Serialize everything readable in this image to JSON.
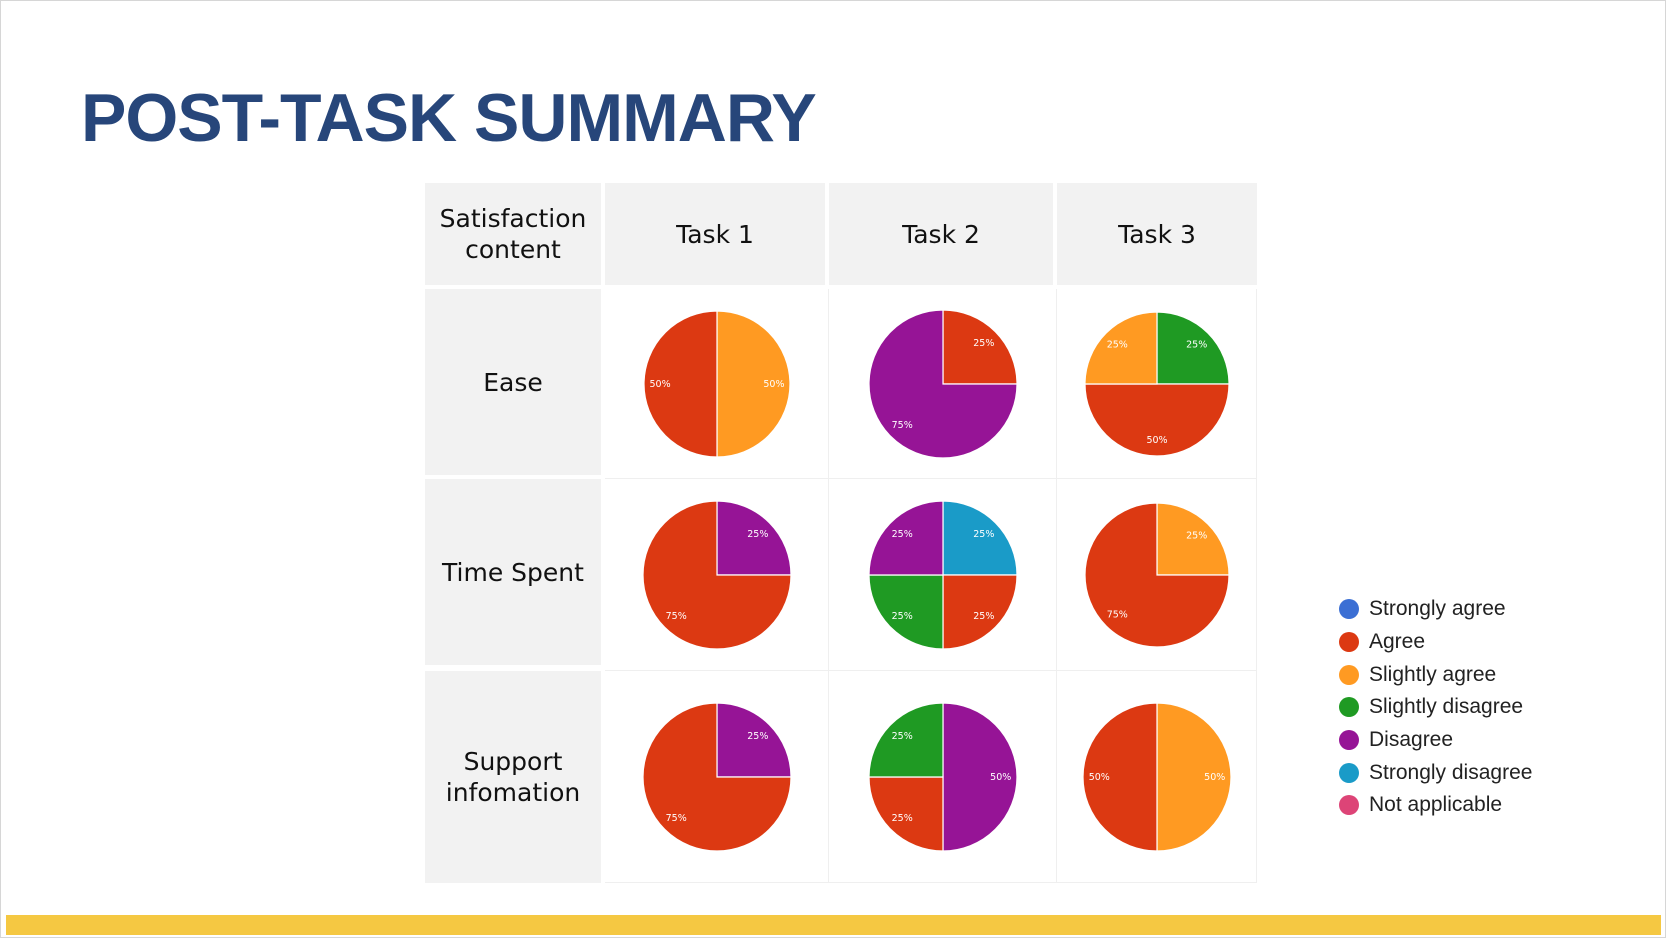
{
  "title": "POST-TASK SUMMARY",
  "table": {
    "corner_header": "Satisfaction content",
    "columns": [
      "Task 1",
      "Task 2",
      "Task 3"
    ],
    "rows": [
      "Ease",
      "Time Spent",
      "Support infomation"
    ]
  },
  "colors": {
    "title": "#27467a",
    "header_bg": "#f2f2f2",
    "bottom_bar": "#f5c842"
  },
  "legend": [
    {
      "label": "Strongly agree",
      "color": "#3b6fd4"
    },
    {
      "label": "Agree",
      "color": "#dc3912"
    },
    {
      "label": "Slightly agree",
      "color": "#ff9a22"
    },
    {
      "label": "Slightly disagree",
      "color": "#1f9a23"
    },
    {
      "label": "Disagree",
      "color": "#961496"
    },
    {
      "label": "Strongly disagree",
      "color": "#1a9bc8"
    },
    {
      "label": "Not applicable",
      "color": "#dd4477"
    }
  ],
  "chart_data": [
    {
      "type": "pie",
      "task": "Task 1",
      "criterion": "Ease",
      "slices": [
        {
          "category": "Slightly agree",
          "value": 50,
          "label": "50%"
        },
        {
          "category": "Agree",
          "value": 50,
          "label": "50%"
        }
      ]
    },
    {
      "type": "pie",
      "task": "Task 2",
      "criterion": "Ease",
      "slices": [
        {
          "category": "Agree",
          "value": 25,
          "label": "25%"
        },
        {
          "category": "Disagree",
          "value": 75,
          "label": "75%"
        }
      ]
    },
    {
      "type": "pie",
      "task": "Task 3",
      "criterion": "Ease",
      "slices": [
        {
          "category": "Slightly disagree",
          "value": 25,
          "label": "25%"
        },
        {
          "category": "Agree",
          "value": 50,
          "label": "50%"
        },
        {
          "category": "Slightly agree",
          "value": 25,
          "label": "25%"
        }
      ]
    },
    {
      "type": "pie",
      "task": "Task 1",
      "criterion": "Time Spent",
      "slices": [
        {
          "category": "Disagree",
          "value": 25,
          "label": "25%"
        },
        {
          "category": "Agree",
          "value": 75,
          "label": "75%"
        }
      ]
    },
    {
      "type": "pie",
      "task": "Task 2",
      "criterion": "Time Spent",
      "slices": [
        {
          "category": "Strongly disagree",
          "value": 25,
          "label": "25%"
        },
        {
          "category": "Agree",
          "value": 25,
          "label": "25%"
        },
        {
          "category": "Slightly disagree",
          "value": 25,
          "label": "25%"
        },
        {
          "category": "Disagree",
          "value": 25,
          "label": "25%"
        }
      ]
    },
    {
      "type": "pie",
      "task": "Task 3",
      "criterion": "Time Spent",
      "slices": [
        {
          "category": "Slightly agree",
          "value": 25,
          "label": "25%"
        },
        {
          "category": "Agree",
          "value": 75,
          "label": "75%"
        }
      ]
    },
    {
      "type": "pie",
      "task": "Task 1",
      "criterion": "Support infomation",
      "slices": [
        {
          "category": "Disagree",
          "value": 25,
          "label": "25%"
        },
        {
          "category": "Agree",
          "value": 75,
          "label": "75%"
        }
      ]
    },
    {
      "type": "pie",
      "task": "Task 2",
      "criterion": "Support infomation",
      "slices": [
        {
          "category": "Disagree",
          "value": 50,
          "label": "50%"
        },
        {
          "category": "Agree",
          "value": 25,
          "label": "25%"
        },
        {
          "category": "Slightly disagree",
          "value": 25,
          "label": "25%"
        }
      ]
    },
    {
      "type": "pie",
      "task": "Task 3",
      "criterion": "Support infomation",
      "slices": [
        {
          "category": "Slightly agree",
          "value": 50,
          "label": "50%"
        },
        {
          "category": "Agree",
          "value": 50,
          "label": "50%"
        }
      ]
    }
  ]
}
